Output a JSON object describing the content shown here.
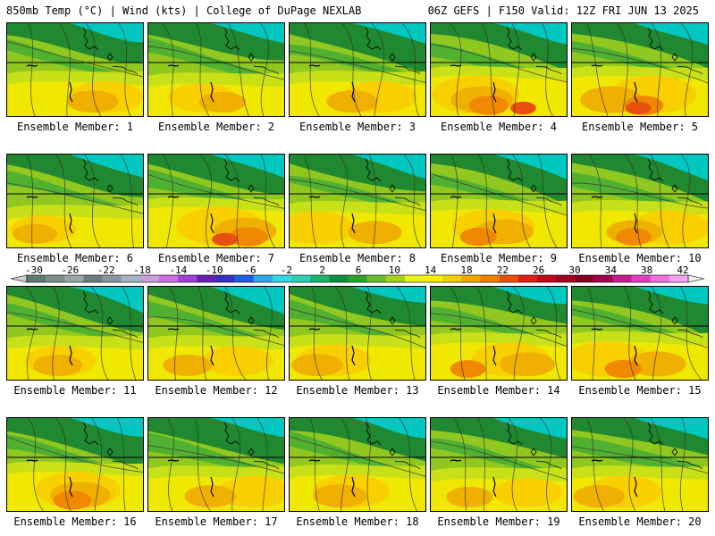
{
  "header": {
    "left": "850mb Temp (°C) | Wind (kts) | College of DuPage NEXLAB",
    "right": "06Z GEFS | F150 Valid: 12Z FRI JUN 13 2025"
  },
  "label_prefix": "Ensemble Member: ",
  "members": [
    {
      "id": "1",
      "warmth": 0.55
    },
    {
      "id": "2",
      "warmth": 0.45
    },
    {
      "id": "3",
      "warmth": 0.55
    },
    {
      "id": "4",
      "warmth": 0.8
    },
    {
      "id": "5",
      "warmth": 0.8
    },
    {
      "id": "6",
      "warmth": 0.4
    },
    {
      "id": "7",
      "warmth": 0.8
    },
    {
      "id": "8",
      "warmth": 0.6
    },
    {
      "id": "9",
      "warmth": 0.7
    },
    {
      "id": "10",
      "warmth": 0.65
    },
    {
      "id": "11",
      "warmth": 0.5
    },
    {
      "id": "12",
      "warmth": 0.5
    },
    {
      "id": "13",
      "warmth": 0.55
    },
    {
      "id": "14",
      "warmth": 0.65
    },
    {
      "id": "15",
      "warmth": 0.7
    },
    {
      "id": "16",
      "warmth": 0.75
    },
    {
      "id": "17",
      "warmth": 0.55
    },
    {
      "id": "18",
      "warmth": 0.6
    },
    {
      "id": "19",
      "warmth": 0.45
    },
    {
      "id": "20",
      "warmth": 0.55
    }
  ],
  "colorbar": {
    "tick_labels": [
      "-30",
      "-26",
      "-22",
      "-18",
      "-14",
      "-10",
      "-6",
      "-2",
      "2",
      "6",
      "10",
      "14",
      "18",
      "22",
      "26",
      "30",
      "34",
      "38",
      "42"
    ],
    "colors": [
      "#5e7a6e",
      "#7b8f86",
      "#9aa6a0",
      "#6f7b80",
      "#8a95a0",
      "#a6b2c0",
      "#c8a0d8",
      "#d070e0",
      "#a040d0",
      "#6a20b0",
      "#3a30c0",
      "#2060e0",
      "#30a8e8",
      "#30d8e8",
      "#30d0b0",
      "#20b070",
      "#109040",
      "#30a030",
      "#70b830",
      "#a8d020",
      "#e8f020",
      "#fff000",
      "#f0d000",
      "#f0a800",
      "#f08000",
      "#e85010",
      "#e02010",
      "#c00818",
      "#a00020",
      "#800020",
      "#a00050",
      "#c02090",
      "#e040c0",
      "#f070e0",
      "#f8a0f0"
    ]
  },
  "map_colors": {
    "cold": [
      "#00c8c0",
      "#10a060",
      "#208830"
    ],
    "mid": [
      "#50b030",
      "#90c820",
      "#c8e018"
    ],
    "warm": [
      "#f0e800",
      "#f8d000",
      "#f0b000",
      "#f08800",
      "#e85010"
    ]
  }
}
